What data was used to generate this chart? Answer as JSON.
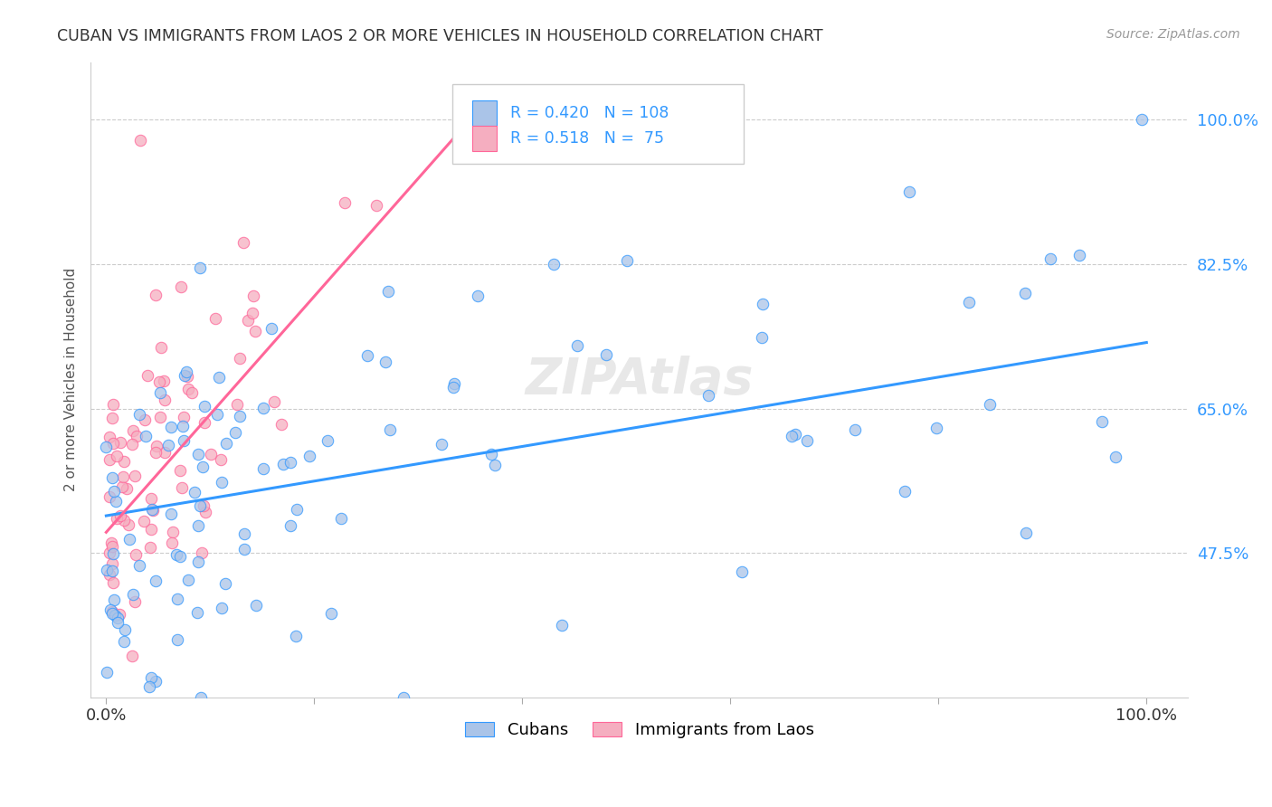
{
  "title": "CUBAN VS IMMIGRANTS FROM LAOS 2 OR MORE VEHICLES IN HOUSEHOLD CORRELATION CHART",
  "source": "Source: ZipAtlas.com",
  "ylabel": "2 or more Vehicles in Household",
  "ytick_labels": [
    "47.5%",
    "65.0%",
    "82.5%",
    "100.0%"
  ],
  "ytick_values": [
    0.475,
    0.65,
    0.825,
    1.0
  ],
  "cubans_R": 0.42,
  "cubans_N": 108,
  "laos_R": 0.518,
  "laos_N": 75,
  "cubans_color": "#aac4e8",
  "laos_color": "#f5aec0",
  "cubans_line_color": "#3399ff",
  "laos_line_color": "#ff6699",
  "legend_color": "#3399ff",
  "watermark": "ZIPAtlas"
}
